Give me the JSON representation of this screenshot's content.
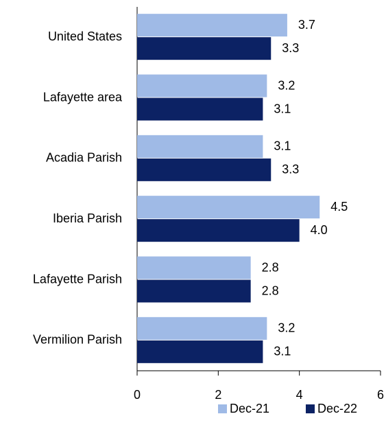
{
  "chart_data": {
    "type": "hbar",
    "categories": [
      "United States",
      "Lafayette area",
      "Acadia Parish",
      "Iberia Parish",
      "Lafayette Parish",
      "Vermilion Parish"
    ],
    "series": [
      {
        "name": "Dec-21",
        "color": "#9fbae6",
        "values": [
          3.7,
          3.2,
          3.1,
          4.5,
          2.8,
          3.2
        ],
        "value_labels": [
          "3.7",
          "3.2",
          "3.1",
          "4.5",
          "2.8",
          "3.2"
        ]
      },
      {
        "name": "Dec-22",
        "color": "#0c2264",
        "values": [
          3.3,
          3.1,
          3.3,
          4.0,
          2.8,
          3.1
        ],
        "value_labels": [
          "3.3",
          "3.1",
          "3.3",
          "4.0",
          "2.8",
          "3.1"
        ]
      }
    ],
    "xlim": [
      0,
      6
    ],
    "xticks": [
      0,
      2,
      4,
      6
    ],
    "grid": false,
    "legend": "bottom-right"
  }
}
